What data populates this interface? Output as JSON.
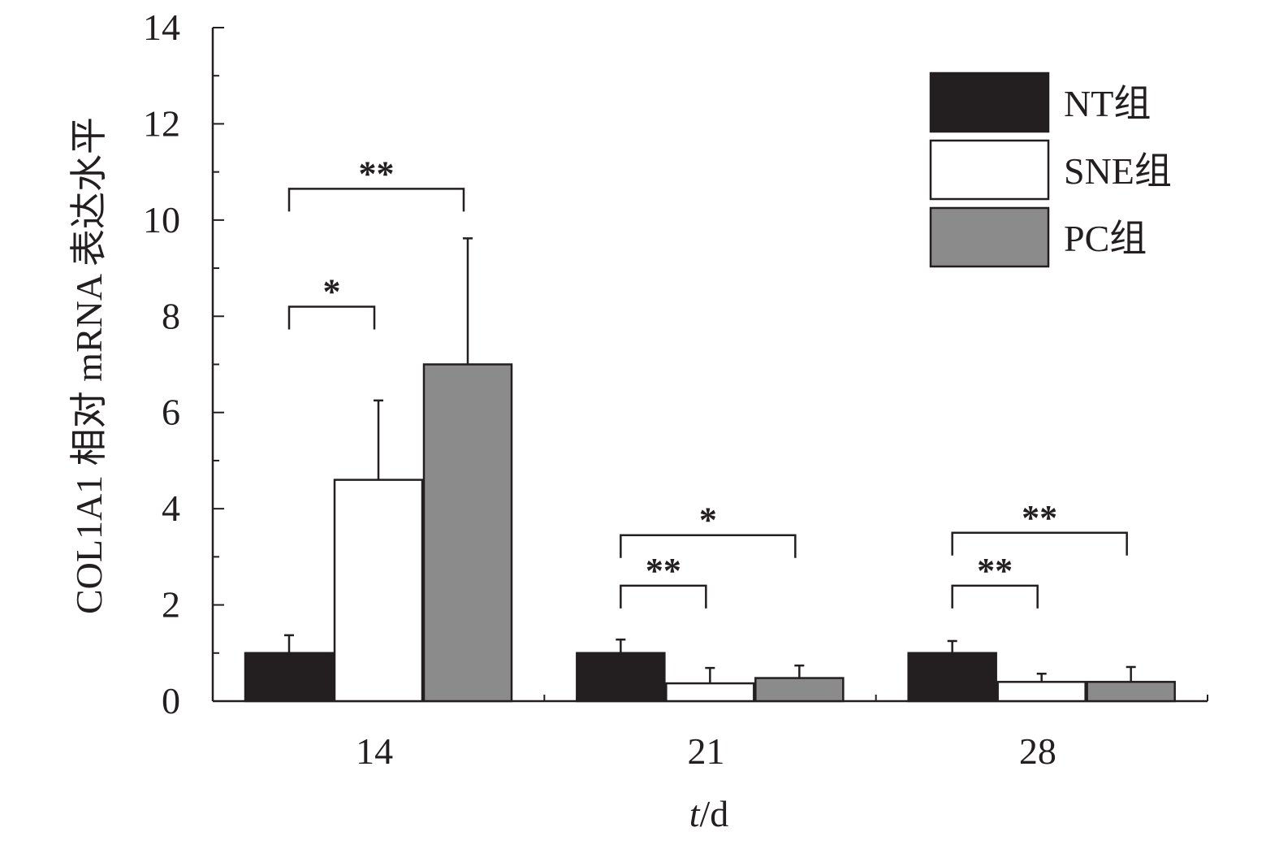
{
  "chart_data": {
    "type": "bar",
    "xlabel_italic": "t",
    "xlabel_rest": "/d",
    "ylabel": "COL1A1 相对 mRNA 表达水平",
    "categories": [
      "14",
      "21",
      "28"
    ],
    "ylim": [
      0,
      14
    ],
    "yticks": [
      "0",
      "2",
      "4",
      "6",
      "8",
      "10",
      "12",
      "14"
    ],
    "grid": false,
    "legend_position": "top-right",
    "series": [
      {
        "name": "NT组",
        "color": "#231f20",
        "values": [
          1.0,
          1.0,
          1.0
        ],
        "errors": [
          0.37,
          0.28,
          0.25
        ]
      },
      {
        "name": "SNE组",
        "color": "#ffffff",
        "values": [
          4.6,
          0.37,
          0.4
        ],
        "errors": [
          1.65,
          0.32,
          0.17
        ]
      },
      {
        "name": "PC组",
        "color": "#8c8b8b",
        "values": [
          7.0,
          0.48,
          0.4
        ],
        "errors": [
          2.62,
          0.26,
          0.31
        ]
      }
    ],
    "significance": [
      {
        "category": 0,
        "from": 0,
        "to": 1,
        "label": "*",
        "level": 8.2
      },
      {
        "category": 0,
        "from": 0,
        "to": 2,
        "label": "**",
        "level": 10.65
      },
      {
        "category": 1,
        "from": 0,
        "to": 1,
        "label": "**",
        "level": 2.4
      },
      {
        "category": 1,
        "from": 0,
        "to": 2,
        "label": "*",
        "level": 3.45
      },
      {
        "category": 2,
        "from": 0,
        "to": 1,
        "label": "**",
        "level": 2.4
      },
      {
        "category": 2,
        "from": 0,
        "to": 2,
        "label": "**",
        "level": 3.5
      }
    ]
  }
}
